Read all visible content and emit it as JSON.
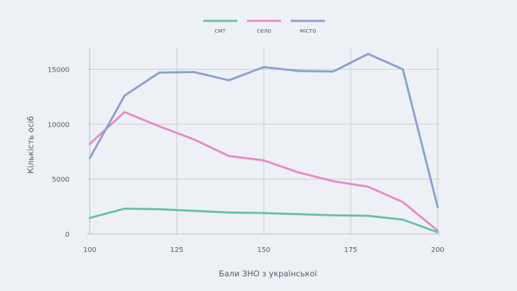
{
  "chart_data": {
    "type": "line",
    "title": "",
    "xlabel": "Бали ЗНО з української",
    "ylabel": "Кількість осіб",
    "xlim": [
      100,
      200
    ],
    "ylim": [
      0,
      17000
    ],
    "x_ticks": [
      100,
      125,
      150,
      175,
      200
    ],
    "y_ticks": [
      0,
      5000,
      10000,
      15000
    ],
    "grid": true,
    "legend_position": "top-center",
    "x": [
      100,
      110,
      120,
      130,
      140,
      150,
      160,
      170,
      180,
      190,
      200
    ],
    "series": [
      {
        "name": "смт",
        "color": "#66c2a5",
        "values": [
          1450,
          2300,
          2250,
          2100,
          1950,
          1900,
          1800,
          1700,
          1650,
          1300,
          150
        ]
      },
      {
        "name": "село",
        "color": "#e78ac3",
        "values": [
          8200,
          11100,
          9800,
          8600,
          7100,
          6700,
          5600,
          4800,
          4300,
          2900,
          300
        ]
      },
      {
        "name": "місто",
        "color": "#8da0cb",
        "values": [
          6900,
          12600,
          14700,
          14750,
          14000,
          15200,
          14850,
          14800,
          16400,
          15000,
          2450
        ]
      }
    ]
  }
}
